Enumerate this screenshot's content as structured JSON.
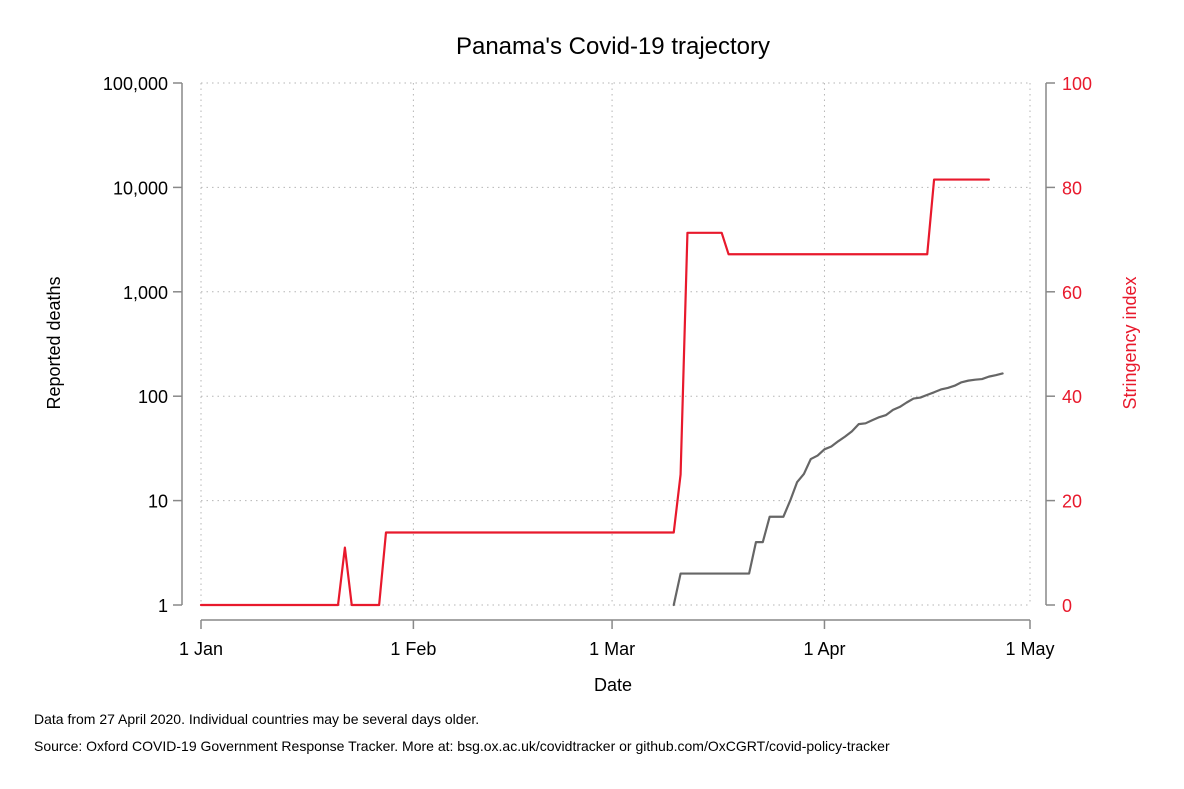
{
  "chart_data": {
    "type": "line",
    "title": "Panama's Covid-19 trajectory",
    "xlabel": "Date",
    "x_range": [
      "2020-01-01",
      "2020-05-01"
    ],
    "x_ticks": [
      {
        "date": "2020-01-01",
        "label": "1 Jan"
      },
      {
        "date": "2020-02-01",
        "label": "1 Feb"
      },
      {
        "date": "2020-03-01",
        "label": "1 Mar"
      },
      {
        "date": "2020-04-01",
        "label": "1 Apr"
      },
      {
        "date": "2020-05-01",
        "label": "1 May"
      }
    ],
    "y_left": {
      "label": "Reported deaths",
      "scale": "log",
      "range": [
        1,
        100000
      ],
      "ticks": [
        {
          "value": 1,
          "label": "1"
        },
        {
          "value": 10,
          "label": "10"
        },
        {
          "value": 100,
          "label": "100"
        },
        {
          "value": 1000,
          "label": "1,000"
        },
        {
          "value": 10000,
          "label": "10,000"
        },
        {
          "value": 100000,
          "label": "100,000"
        }
      ]
    },
    "y_right": {
      "label": "Stringency index",
      "scale": "linear",
      "range": [
        0,
        100
      ],
      "color": "#e8192c",
      "ticks": [
        {
          "value": 0,
          "label": "0"
        },
        {
          "value": 20,
          "label": "20"
        },
        {
          "value": 40,
          "label": "40"
        },
        {
          "value": 60,
          "label": "60"
        },
        {
          "value": 80,
          "label": "80"
        },
        {
          "value": 100,
          "label": "100"
        }
      ]
    },
    "grid": true,
    "series": [
      {
        "axis": "left",
        "color": "#666666",
        "points": [
          [
            "2020-03-10",
            1
          ],
          [
            "2020-03-11",
            2
          ],
          [
            "2020-03-12",
            2
          ],
          [
            "2020-03-13",
            2
          ],
          [
            "2020-03-14",
            2
          ],
          [
            "2020-03-15",
            2
          ],
          [
            "2020-03-16",
            2
          ],
          [
            "2020-03-17",
            2
          ],
          [
            "2020-03-18",
            2
          ],
          [
            "2020-03-19",
            2
          ],
          [
            "2020-03-20",
            2
          ],
          [
            "2020-03-21",
            2
          ],
          [
            "2020-03-22",
            4
          ],
          [
            "2020-03-23",
            4
          ],
          [
            "2020-03-24",
            7
          ],
          [
            "2020-03-25",
            7
          ],
          [
            "2020-03-26",
            7
          ],
          [
            "2020-03-27",
            10
          ],
          [
            "2020-03-28",
            15
          ],
          [
            "2020-03-29",
            18
          ],
          [
            "2020-03-30",
            25
          ],
          [
            "2020-03-31",
            27
          ],
          [
            "2020-04-01",
            31
          ],
          [
            "2020-04-02",
            33
          ],
          [
            "2020-04-03",
            37
          ],
          [
            "2020-04-04",
            41
          ],
          [
            "2020-04-05",
            46
          ],
          [
            "2020-04-06",
            54
          ],
          [
            "2020-04-07",
            55
          ],
          [
            "2020-04-08",
            59
          ],
          [
            "2020-04-09",
            63
          ],
          [
            "2020-04-10",
            66
          ],
          [
            "2020-04-11",
            74
          ],
          [
            "2020-04-12",
            79
          ],
          [
            "2020-04-13",
            87
          ],
          [
            "2020-04-14",
            95
          ],
          [
            "2020-04-15",
            97
          ],
          [
            "2020-04-16",
            103
          ],
          [
            "2020-04-17",
            109
          ],
          [
            "2020-04-18",
            116
          ],
          [
            "2020-04-19",
            120
          ],
          [
            "2020-04-20",
            126
          ],
          [
            "2020-04-21",
            136
          ],
          [
            "2020-04-22",
            141
          ],
          [
            "2020-04-23",
            144
          ],
          [
            "2020-04-24",
            146
          ],
          [
            "2020-04-25",
            154
          ],
          [
            "2020-04-26",
            159
          ],
          [
            "2020-04-27",
            165
          ]
        ]
      },
      {
        "axis": "right",
        "color": "#e8192c",
        "points": [
          [
            "2020-01-01",
            0
          ],
          [
            "2020-01-21",
            0
          ],
          [
            "2020-01-22",
            11
          ],
          [
            "2020-01-23",
            0
          ],
          [
            "2020-01-27",
            0
          ],
          [
            "2020-01-28",
            13.89
          ],
          [
            "2020-03-10",
            13.89
          ],
          [
            "2020-03-11",
            25
          ],
          [
            "2020-03-12",
            71.3
          ],
          [
            "2020-03-17",
            71.3
          ],
          [
            "2020-03-18",
            67.2
          ],
          [
            "2020-04-16",
            67.2
          ],
          [
            "2020-04-17",
            81.5
          ],
          [
            "2020-04-25",
            81.5
          ]
        ]
      }
    ]
  },
  "footnotes": {
    "data_date": "Data from 27 April 2020. Individual countries may be several days older.",
    "source": "Source: Oxford COVID-19 Government Response Tracker. More at: bsg.ox.ac.uk/covidtracker or github.com/OxCGRT/covid-policy-tracker"
  }
}
